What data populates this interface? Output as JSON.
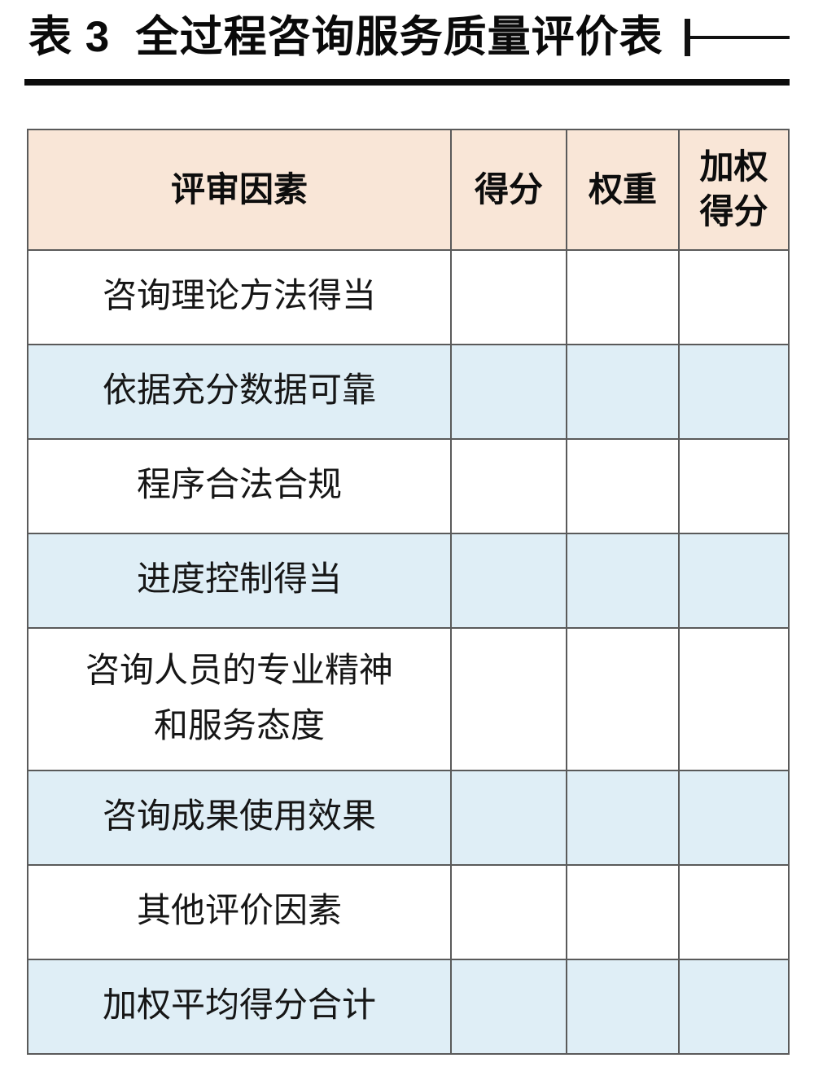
{
  "page": {
    "title": "表 3  全过程咨询服务质量评价表"
  },
  "colors": {
    "header_bg": "#f9e6d7",
    "alt_row_bg": "#dfeef6",
    "row_bg": "#ffffff",
    "border": "#5a5a5a",
    "title_text": "#0a0a0a",
    "divider_bar": "#0c0c0c"
  },
  "table": {
    "headers": [
      "评审因素",
      "得分",
      "权重",
      "加权得分"
    ],
    "rows": [
      {
        "factor": "咨询理论方法得当",
        "score": "",
        "weight": "",
        "weighted_score": ""
      },
      {
        "factor": "依据充分数据可靠",
        "score": "",
        "weight": "",
        "weighted_score": ""
      },
      {
        "factor": "程序合法合规",
        "score": "",
        "weight": "",
        "weighted_score": ""
      },
      {
        "factor": "进度控制得当",
        "score": "",
        "weight": "",
        "weighted_score": ""
      },
      {
        "factor": "咨询人员的专业精神和服务态度",
        "score": "",
        "weight": "",
        "weighted_score": ""
      },
      {
        "factor": "咨询成果使用效果",
        "score": "",
        "weight": "",
        "weighted_score": ""
      },
      {
        "factor": "其他评价因素",
        "score": "",
        "weight": "",
        "weighted_score": ""
      },
      {
        "factor": "加权平均得分合计",
        "score": "",
        "weight": "",
        "weighted_score": ""
      }
    ]
  }
}
